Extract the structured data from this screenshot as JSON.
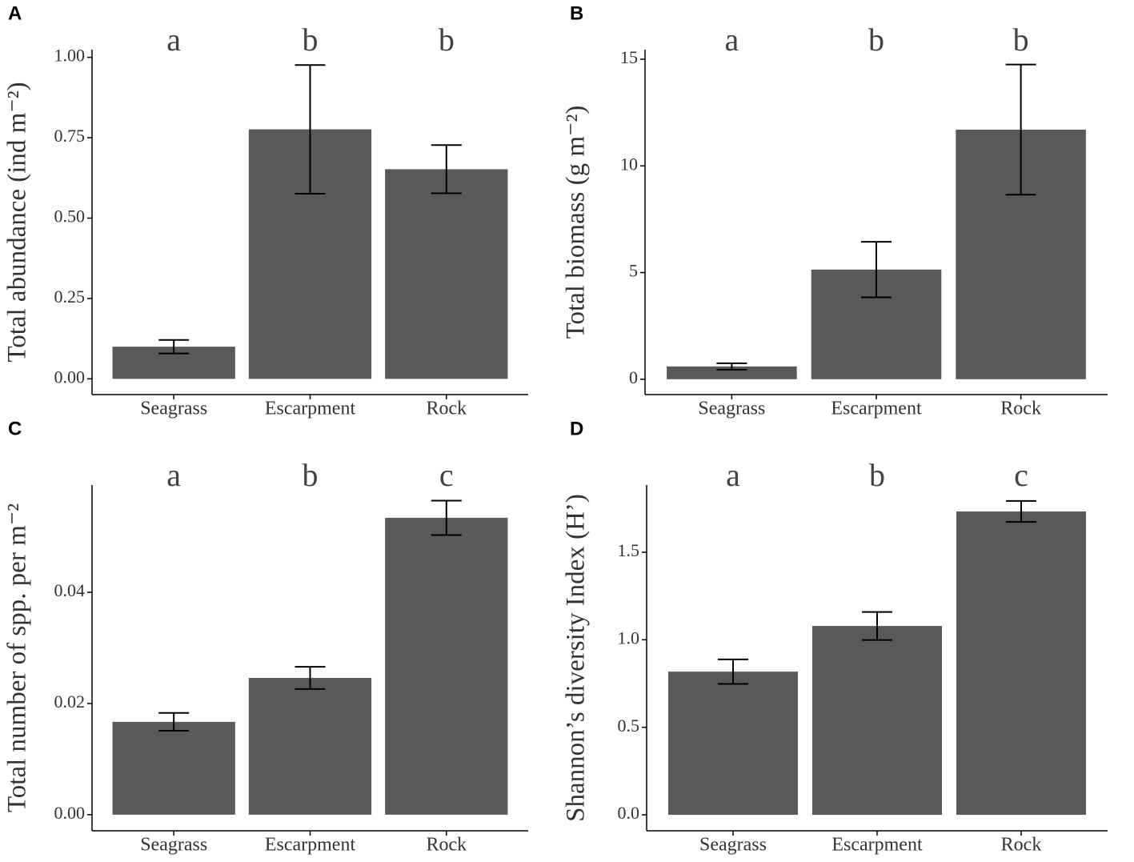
{
  "chart_data": [
    {
      "type": "bar",
      "panel_label": "A",
      "ylabel": "Total abundance (ind m⁻²)",
      "categories": [
        "Seagrass",
        "Escarpment",
        "Rock"
      ],
      "values": [
        0.1,
        0.776,
        0.652
      ],
      "errors": [
        0.021,
        0.2,
        0.075
      ],
      "annotations": [
        "a",
        "b",
        "b"
      ],
      "color": "#595959",
      "ylim": [
        -0.049,
        1.024
      ],
      "yticks": [
        {
          "value": 0,
          "label": "0.00"
        },
        0.25,
        {
          "value": 0.5,
          "label": "0.50"
        },
        0.75,
        {
          "value": 1,
          "label": "1.00"
        }
      ]
    },
    {
      "type": "bar",
      "panel_label": "B",
      "ylabel": "Total biomass (g m⁻²)",
      "categories": [
        "Seagrass",
        "Escarpment",
        "Rock"
      ],
      "values": [
        0.6,
        5.14,
        11.7
      ],
      "errors": [
        0.15,
        1.3,
        3.05
      ],
      "annotations": [
        "a",
        "b",
        "b"
      ],
      "color": "#595959",
      "ylim": [
        -0.72,
        15.45
      ],
      "yticks": [
        0,
        5,
        10,
        15
      ]
    },
    {
      "type": "bar",
      "panel_label": "C",
      "ylabel": "Total number of spp. per m⁻²",
      "categories": [
        "Seagrass",
        "Escarpment",
        "Rock"
      ],
      "values": [
        0.0167,
        0.0246,
        0.0534
      ],
      "errors": [
        0.0016,
        0.002,
        0.0031
      ],
      "annotations": [
        "a",
        "b",
        "c"
      ],
      "color": "#595959",
      "ylim": [
        -0.0029,
        0.0593
      ],
      "yticks": [
        {
          "value": 0,
          "label": "0.00"
        },
        0.02,
        0.04
      ]
    },
    {
      "type": "bar",
      "panel_label": "D",
      "ylabel": "Shannon’s diversity Index (H’)",
      "categories": [
        "Seagrass",
        "Escarpment",
        "Rock"
      ],
      "values": [
        0.818,
        1.079,
        1.733
      ],
      "errors": [
        0.07,
        0.08,
        0.06
      ],
      "annotations": [
        "a",
        "b",
        "c"
      ],
      "color": "#595959",
      "ylim": [
        -0.091,
        1.884
      ],
      "yticks": [
        {
          "value": 0,
          "label": "0.0"
        },
        0.5,
        {
          "value": 1,
          "label": "1.0"
        },
        1.5
      ]
    }
  ]
}
